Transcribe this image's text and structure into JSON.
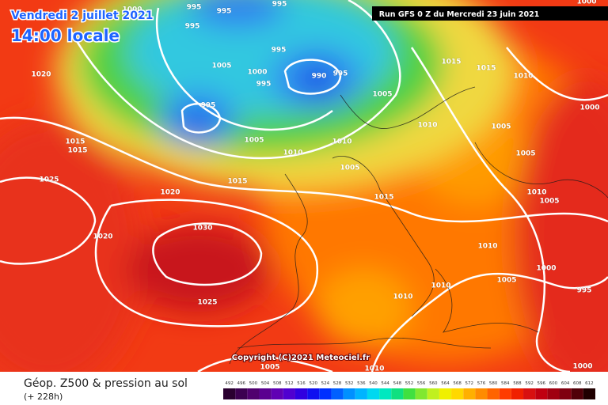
{
  "header": {
    "date": "Vendredi 2 juillet 2021",
    "time": "14:00 locale",
    "run": "Run GFS 0 Z du Mercredi 23 juin 2021"
  },
  "copyright": "Copyright (C)2021 Meteociel.fr",
  "footer": {
    "title": "Géop. Z500 & pression au sol",
    "lead": "(+ 228h)"
  },
  "isobar_labels": [
    "1000",
    "995",
    "995",
    "995",
    "995",
    "1005",
    "1000",
    "995",
    "995",
    "990",
    "995",
    "1005",
    "995",
    "1020",
    "1015",
    "1015",
    "1005",
    "1010",
    "1010",
    "1005",
    "1015",
    "1025",
    "1020",
    "1015",
    "1010",
    "1015",
    "1015",
    "1010",
    "1000",
    "1005",
    "1005",
    "1010",
    "1005",
    "1020",
    "1030",
    "1025",
    "1010",
    "1000",
    "1005",
    "1010",
    "1010",
    "995",
    "1005",
    "1010",
    "1000",
    "1000"
  ],
  "colorbar": {
    "labels": [
      492,
      496,
      500,
      504,
      508,
      512,
      516,
      520,
      524,
      528,
      532,
      536,
      540,
      544,
      548,
      552,
      556,
      560,
      564,
      568,
      572,
      576,
      580,
      584,
      588,
      592,
      596,
      600,
      604,
      608,
      612
    ],
    "colors": [
      "#2a0030",
      "#3c0050",
      "#50006e",
      "#5a0090",
      "#6000b4",
      "#5000d0",
      "#3000e0",
      "#1010f0",
      "#0030ff",
      "#0060ff",
      "#0090ff",
      "#00b4ff",
      "#00d8f0",
      "#00e8c0",
      "#10e080",
      "#40e040",
      "#80e830",
      "#c0f020",
      "#f0f000",
      "#ffd800",
      "#ffb000",
      "#ff8c00",
      "#ff6400",
      "#ff3c00",
      "#f02000",
      "#d81010",
      "#c00010",
      "#a00010",
      "#800010",
      "#500008",
      "#200000"
    ]
  }
}
